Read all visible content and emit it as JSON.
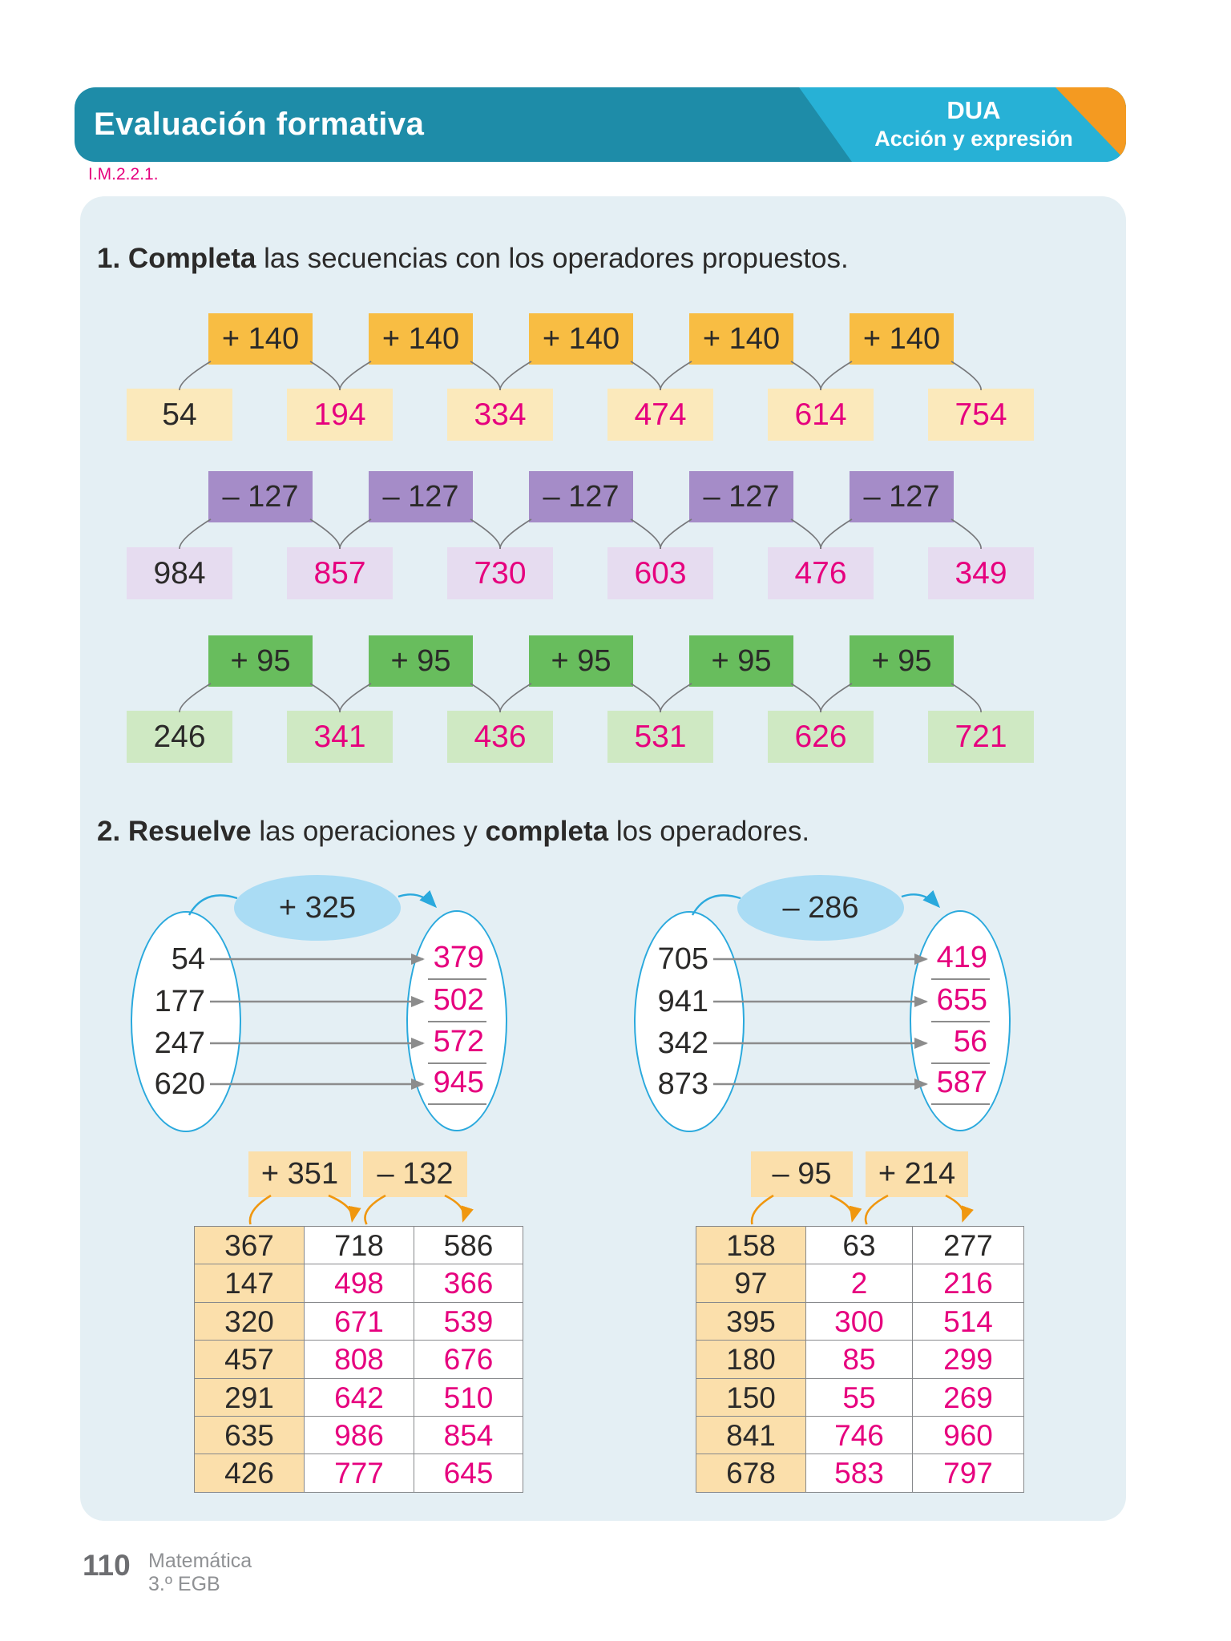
{
  "banner": {
    "title": "Evaluación formativa",
    "badge_title": "DUA",
    "badge_subtitle": "Acción y expresión"
  },
  "code": "I.M.2.2.1.",
  "colors": {
    "banner_teal": "#1e8ca8",
    "banner_cyan": "#27b1d6",
    "banner_orange": "#f49a21",
    "answer_pink": "#e6007e",
    "panel_blue": "#e4eff4",
    "oval_stroke_blue": "#2aa9dd",
    "ellipse_fill_blue": "#aadcf4",
    "arrow_gray": "#8c8c8c",
    "arrow_orange": "#f0970f",
    "table_header_orange": "#fbdfab",
    "themes": {
      "yellow": {
        "op": "#f8bd43",
        "val": "#fbe9bb"
      },
      "purple": {
        "op": "#a58cc8",
        "val": "#e6dcf0"
      },
      "green": {
        "op": "#68bd5d",
        "val": "#cfe9c3"
      }
    }
  },
  "exercise1": {
    "heading": [
      {
        "t": "1. Completa",
        "b": true
      },
      {
        "t": " las secuencias con los operadores propuestos.",
        "b": false
      }
    ],
    "sequences": [
      {
        "operator": "+ 140",
        "theme": "yellow",
        "values": [
          "54",
          "194",
          "334",
          "474",
          "614",
          "754"
        ]
      },
      {
        "operator": "– 127",
        "theme": "purple",
        "values": [
          "984",
          "857",
          "730",
          "603",
          "476",
          "349"
        ]
      },
      {
        "operator": "+ 95",
        "theme": "green",
        "values": [
          "246",
          "341",
          "436",
          "531",
          "626",
          "721"
        ]
      }
    ]
  },
  "exercise2": {
    "heading": [
      {
        "t": "2. Resuelve",
        "b": true
      },
      {
        "t": " las operaciones y ",
        "b": false
      },
      {
        "t": "completa",
        "b": true
      },
      {
        "t": " los operadores.",
        "b": false
      }
    ],
    "mappings": [
      {
        "operator": "+ 325",
        "inputs": [
          "54",
          "177",
          "247",
          "620"
        ],
        "outputs": [
          "379",
          "502",
          "572",
          "945"
        ]
      },
      {
        "operator": "– 286",
        "inputs": [
          "705",
          "941",
          "342",
          "873"
        ],
        "outputs": [
          "419",
          "655",
          "56",
          "587"
        ]
      }
    ],
    "tables": [
      {
        "operators": [
          "+ 351",
          "– 132"
        ],
        "rows": [
          [
            "367",
            "718",
            "586"
          ],
          [
            "147",
            "498",
            "366"
          ],
          [
            "320",
            "671",
            "539"
          ],
          [
            "457",
            "808",
            "676"
          ],
          [
            "291",
            "642",
            "510"
          ],
          [
            "635",
            "986",
            "854"
          ],
          [
            "426",
            "777",
            "645"
          ]
        ]
      },
      {
        "operators": [
          "– 95",
          "+ 214"
        ],
        "rows": [
          [
            "158",
            "63",
            "277"
          ],
          [
            "97",
            "2",
            "216"
          ],
          [
            "395",
            "300",
            "514"
          ],
          [
            "180",
            "85",
            "299"
          ],
          [
            "150",
            "55",
            "269"
          ],
          [
            "841",
            "746",
            "960"
          ],
          [
            "678",
            "583",
            "797"
          ]
        ]
      }
    ]
  },
  "footer": {
    "page_number": "110",
    "subject": "Matemática",
    "grade": "3.º EGB"
  }
}
